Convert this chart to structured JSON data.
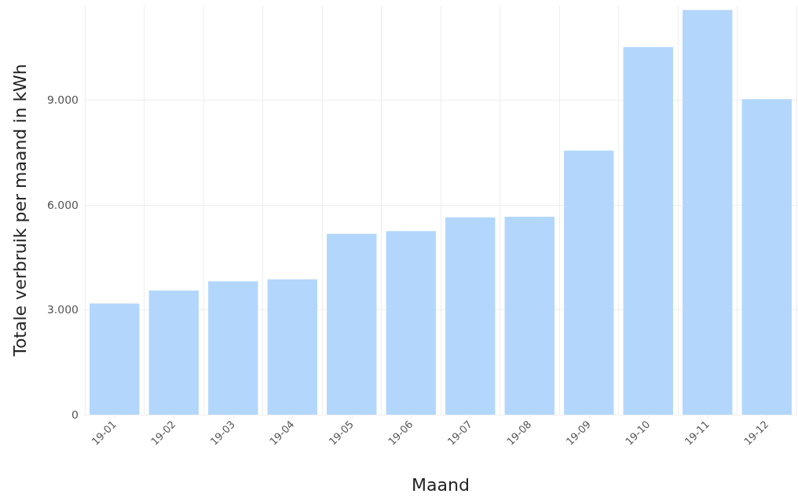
{
  "chart_data": {
    "type": "bar",
    "xlabel": "Maand",
    "ylabel": "Totale verbruik per maand in kWh",
    "categories": [
      "19-01",
      "19-02",
      "19-03",
      "19-04",
      "19-05",
      "19-06",
      "19-07",
      "19-08",
      "19-09",
      "19-10",
      "19-11",
      "19-12"
    ],
    "values": [
      3180,
      3550,
      3810,
      3870,
      5170,
      5250,
      5640,
      5660,
      7550,
      10510,
      11570,
      9020
    ],
    "color": "#b3d7fc",
    "ylim": [
      0,
      11700
    ],
    "yticks": [
      0,
      {
        "value": 3000,
        "label": "3.000"
      },
      {
        "value": 6000,
        "label": "6.000"
      },
      {
        "value": 9000,
        "label": "9.000"
      }
    ],
    "grid": true
  }
}
